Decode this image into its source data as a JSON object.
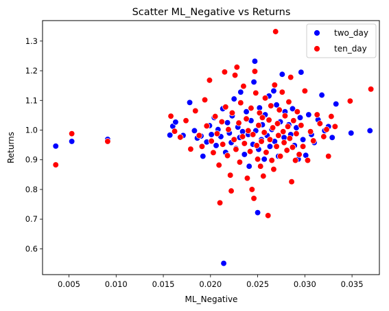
{
  "chart_data": {
    "type": "scatter",
    "title": "Scatter ML_Negative vs Returns",
    "xlabel": "ML_Negative",
    "ylabel": "Returns",
    "xlim": [
      0.0022,
      0.0379
    ],
    "ylim": [
      0.513,
      1.369
    ],
    "xticks": [
      0.005,
      0.01,
      0.015,
      0.02,
      0.025,
      0.03,
      0.035
    ],
    "xtick_labels": [
      "0.005",
      "0.010",
      "0.015",
      "0.020",
      "0.025",
      "0.030",
      "0.035"
    ],
    "yticks": [
      0.6,
      0.7,
      0.8,
      0.9,
      1.0,
      1.1,
      1.2,
      1.3
    ],
    "ytick_labels": [
      "0.6",
      "0.7",
      "0.8",
      "0.9",
      "1.0",
      "1.1",
      "1.2",
      "1.3"
    ],
    "grid": false,
    "legend_position": "top-right",
    "series": [
      {
        "name": "two_day",
        "color": "#0000ff",
        "points": [
          [
            0.0036,
            0.946
          ],
          [
            0.0053,
            0.962
          ],
          [
            0.0091,
            0.969
          ],
          [
            0.0157,
            0.983
          ],
          [
            0.016,
            1.013
          ],
          [
            0.0163,
            1.027
          ],
          [
            0.0171,
            0.982
          ],
          [
            0.0178,
            1.093
          ],
          [
            0.0183,
            0.998
          ],
          [
            0.0186,
            0.973
          ],
          [
            0.019,
            0.98
          ],
          [
            0.0192,
            0.912
          ],
          [
            0.0196,
            0.96
          ],
          [
            0.0199,
            1.015
          ],
          [
            0.0201,
            0.985
          ],
          [
            0.0204,
            1.042
          ],
          [
            0.0206,
            0.948
          ],
          [
            0.0208,
            1.002
          ],
          [
            0.0211,
            0.978
          ],
          [
            0.0213,
            1.072
          ],
          [
            0.0214,
            0.551
          ],
          [
            0.0216,
            0.925
          ],
          [
            0.0218,
            1.025
          ],
          [
            0.022,
            0.99
          ],
          [
            0.0222,
            0.958
          ],
          [
            0.0223,
            1.048
          ],
          [
            0.0225,
            1.105
          ],
          [
            0.0227,
            0.938
          ],
          [
            0.0229,
            1.01
          ],
          [
            0.0231,
            0.975
          ],
          [
            0.0232,
            1.128
          ],
          [
            0.0234,
            0.995
          ],
          [
            0.0236,
            0.918
          ],
          [
            0.0238,
            1.062
          ],
          [
            0.024,
            0.985
          ],
          [
            0.0241,
            0.878
          ],
          [
            0.0243,
            1.032
          ],
          [
            0.0245,
            0.952
          ],
          [
            0.0246,
            1.162
          ],
          [
            0.0247,
            1.232
          ],
          [
            0.0248,
            0.998
          ],
          [
            0.025,
            0.722
          ],
          [
            0.0251,
            0.935
          ],
          [
            0.0252,
            1.075
          ],
          [
            0.0254,
            0.968
          ],
          [
            0.0255,
            1.018
          ],
          [
            0.0257,
            0.902
          ],
          [
            0.0258,
            1.052
          ],
          [
            0.026,
            0.982
          ],
          [
            0.0262,
            1.115
          ],
          [
            0.0263,
            0.945
          ],
          [
            0.0265,
            1.002
          ],
          [
            0.0267,
            1.132
          ],
          [
            0.0268,
            0.962
          ],
          [
            0.027,
            1.085
          ],
          [
            0.0272,
            0.912
          ],
          [
            0.0274,
            1.028
          ],
          [
            0.0276,
            1.188
          ],
          [
            0.0278,
            0.975
          ],
          [
            0.0279,
            1.062
          ],
          [
            0.0281,
            0.932
          ],
          [
            0.0283,
            1.018
          ],
          [
            0.0285,
            0.985
          ],
          [
            0.0287,
            1.072
          ],
          [
            0.0289,
            0.948
          ],
          [
            0.0291,
            1.008
          ],
          [
            0.0293,
            0.902
          ],
          [
            0.0295,
            1.042
          ],
          [
            0.0296,
            1.195
          ],
          [
            0.0298,
            0.968
          ],
          [
            0.0301,
            0.915
          ],
          [
            0.0304,
            1.052
          ],
          [
            0.0307,
            0.985
          ],
          [
            0.031,
            0.958
          ],
          [
            0.0314,
            1.035
          ],
          [
            0.0318,
            1.118
          ],
          [
            0.0321,
            0.998
          ],
          [
            0.0325,
            1.012
          ],
          [
            0.0329,
            0.975
          ],
          [
            0.0333,
            1.088
          ],
          [
            0.0349,
            0.99
          ],
          [
            0.0369,
            0.998
          ]
        ]
      },
      {
        "name": "ten_day",
        "color": "#ff0000",
        "points": [
          [
            0.0036,
            0.883
          ],
          [
            0.0053,
            0.988
          ],
          [
            0.0091,
            0.962
          ],
          [
            0.0158,
            1.047
          ],
          [
            0.0162,
            0.996
          ],
          [
            0.0168,
            0.976
          ],
          [
            0.0174,
            1.032
          ],
          [
            0.0179,
            0.936
          ],
          [
            0.0184,
            1.065
          ],
          [
            0.0188,
            0.982
          ],
          [
            0.0191,
            0.945
          ],
          [
            0.0194,
            1.102
          ],
          [
            0.0196,
            1.014
          ],
          [
            0.0199,
            1.168
          ],
          [
            0.0201,
            0.963
          ],
          [
            0.0203,
            0.924
          ],
          [
            0.0205,
            1.046
          ],
          [
            0.0207,
            0.988
          ],
          [
            0.0209,
            0.882
          ],
          [
            0.021,
            0.755
          ],
          [
            0.0212,
            1.028
          ],
          [
            0.0213,
            0.952
          ],
          [
            0.0215,
            1.196
          ],
          [
            0.0216,
            1.078
          ],
          [
            0.0218,
            0.914
          ],
          [
            0.0219,
            1.002
          ],
          [
            0.0221,
            0.848
          ],
          [
            0.0222,
            0.795
          ],
          [
            0.0223,
            1.058
          ],
          [
            0.0225,
            0.968
          ],
          [
            0.0226,
            1.185
          ],
          [
            0.0227,
            0.935
          ],
          [
            0.0228,
            1.212
          ],
          [
            0.023,
            1.024
          ],
          [
            0.0231,
            0.892
          ],
          [
            0.0232,
            1.092
          ],
          [
            0.0234,
            0.978
          ],
          [
            0.0235,
            1.148
          ],
          [
            0.0236,
            0.955
          ],
          [
            0.0238,
            1.038
          ],
          [
            0.0239,
            0.838
          ],
          [
            0.024,
            0.998
          ],
          [
            0.0242,
            0.928
          ],
          [
            0.0243,
            1.074
          ],
          [
            0.0244,
            0.8
          ],
          [
            0.0245,
            0.985
          ],
          [
            0.0246,
            0.77
          ],
          [
            0.0247,
            1.198
          ],
          [
            0.0248,
            1.125
          ],
          [
            0.0249,
            0.948
          ],
          [
            0.025,
            0.902
          ],
          [
            0.0251,
            1.016
          ],
          [
            0.0252,
            1.058
          ],
          [
            0.0253,
            0.878
          ],
          [
            0.0254,
            0.962
          ],
          [
            0.0255,
            1.042
          ],
          [
            0.0256,
            0.845
          ],
          [
            0.0257,
            0.992
          ],
          [
            0.0258,
            1.108
          ],
          [
            0.0259,
            0.925
          ],
          [
            0.0261,
            0.712
          ],
          [
            0.0262,
            1.034
          ],
          [
            0.0263,
            0.968
          ],
          [
            0.0264,
            1.082
          ],
          [
            0.0265,
            0.898
          ],
          [
            0.0266,
            1.008
          ],
          [
            0.0267,
            0.868
          ],
          [
            0.0268,
            1.152
          ],
          [
            0.0269,
            1.332
          ],
          [
            0.027,
            0.945
          ],
          [
            0.0271,
            1.022
          ],
          [
            0.0272,
            0.982
          ],
          [
            0.0273,
            1.068
          ],
          [
            0.0274,
            0.912
          ],
          [
            0.0276,
            1.128
          ],
          [
            0.0277,
            0.995
          ],
          [
            0.0278,
            0.958
          ],
          [
            0.0279,
            1.048
          ],
          [
            0.0281,
            0.932
          ],
          [
            0.0282,
            1.012
          ],
          [
            0.0283,
            1.095
          ],
          [
            0.0284,
            0.972
          ],
          [
            0.0285,
            1.178
          ],
          [
            0.0286,
            0.826
          ],
          [
            0.0287,
            0.942
          ],
          [
            0.0288,
            1.032
          ],
          [
            0.029,
            0.898
          ],
          [
            0.0291,
            0.988
          ],
          [
            0.0292,
            1.062
          ],
          [
            0.0294,
            0.918
          ],
          [
            0.0296,
            1.016
          ],
          [
            0.0298,
            0.945
          ],
          [
            0.03,
            1.132
          ],
          [
            0.0303,
            0.898
          ],
          [
            0.0306,
            0.995
          ],
          [
            0.0309,
            0.964
          ],
          [
            0.0313,
            1.052
          ],
          [
            0.0316,
            1.022
          ],
          [
            0.032,
            0.978
          ],
          [
            0.0323,
            1.002
          ],
          [
            0.0325,
            0.912
          ],
          [
            0.0328,
            1.046
          ],
          [
            0.0332,
            1.012
          ],
          [
            0.0348,
            1.098
          ],
          [
            0.037,
            1.138
          ]
        ]
      }
    ]
  }
}
